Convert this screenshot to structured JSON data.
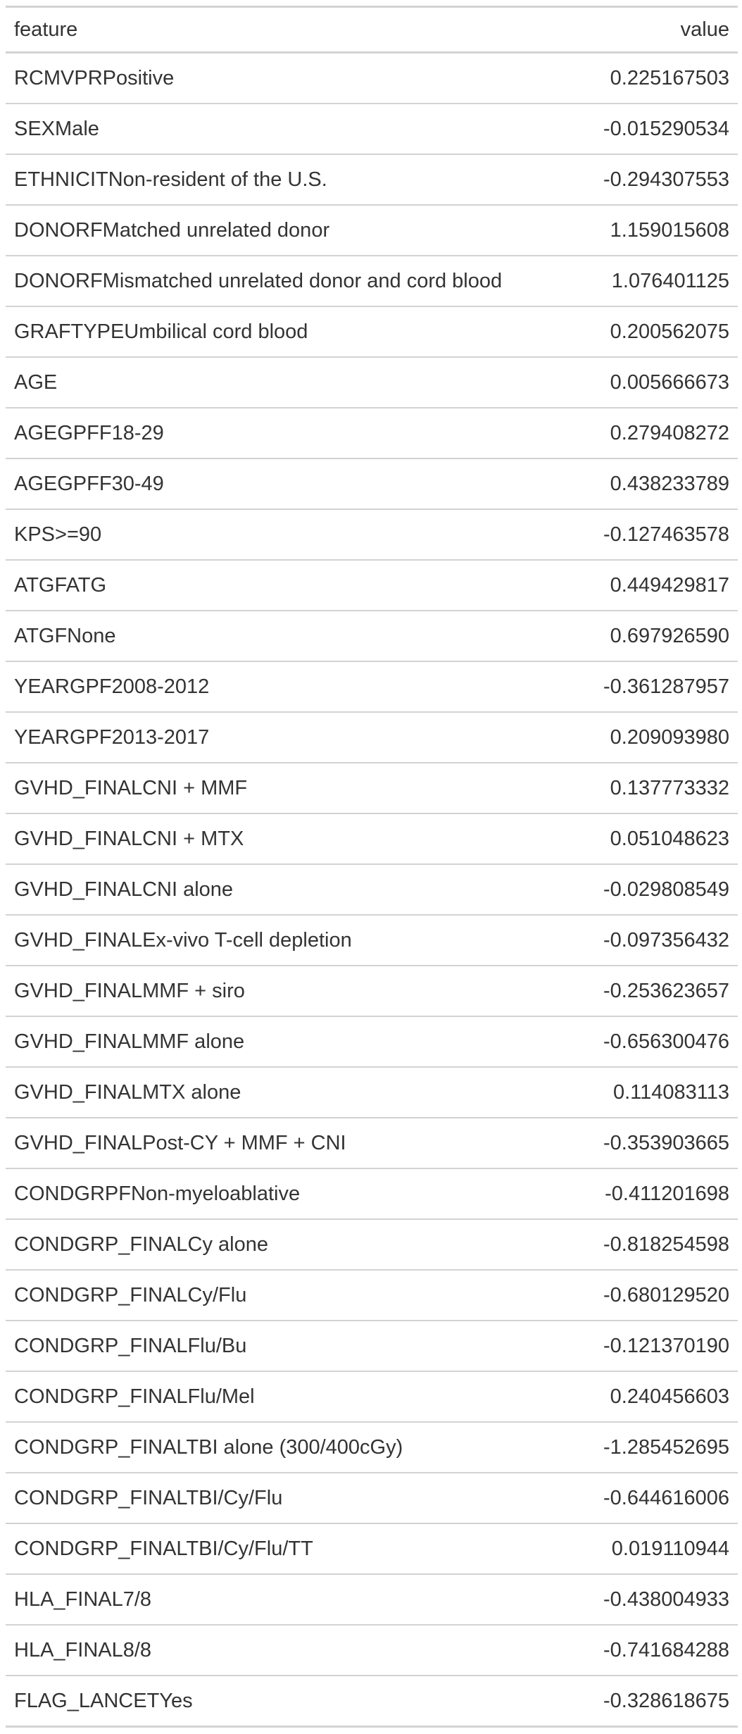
{
  "table": {
    "columns": [
      "feature",
      "value"
    ],
    "rows": [
      [
        "RCMVPRPositive",
        "0.225167503"
      ],
      [
        "SEXMale",
        "-0.015290534"
      ],
      [
        "ETHNICITNon-resident of the U.S.",
        "-0.294307553"
      ],
      [
        "DONORFMatched unrelated donor",
        "1.159015608"
      ],
      [
        "DONORFMismatched unrelated donor and cord blood",
        "1.076401125"
      ],
      [
        "GRAFTYPEUmbilical cord blood",
        "0.200562075"
      ],
      [
        "AGE",
        "0.005666673"
      ],
      [
        "AGEGPFF18-29",
        "0.279408272"
      ],
      [
        "AGEGPFF30-49",
        "0.438233789"
      ],
      [
        "KPS>=90",
        "-0.127463578"
      ],
      [
        "ATGFATG",
        "0.449429817"
      ],
      [
        "ATGFNone",
        "0.697926590"
      ],
      [
        "YEARGPF2008-2012",
        "-0.361287957"
      ],
      [
        "YEARGPF2013-2017",
        "0.209093980"
      ],
      [
        "GVHD_FINALCNI + MMF",
        "0.137773332"
      ],
      [
        "GVHD_FINALCNI + MTX",
        "0.051048623"
      ],
      [
        "GVHD_FINALCNI alone",
        "-0.029808549"
      ],
      [
        "GVHD_FINALEx-vivo T-cell depletion",
        "-0.097356432"
      ],
      [
        "GVHD_FINALMMF + siro",
        "-0.253623657"
      ],
      [
        "GVHD_FINALMMF alone",
        "-0.656300476"
      ],
      [
        "GVHD_FINALMTX alone",
        "0.114083113"
      ],
      [
        "GVHD_FINALPost-CY + MMF + CNI",
        "-0.353903665"
      ],
      [
        "CONDGRPFNon-myeloablative",
        "-0.411201698"
      ],
      [
        "CONDGRP_FINALCy alone",
        "-0.818254598"
      ],
      [
        "CONDGRP_FINALCy/Flu",
        "-0.680129520"
      ],
      [
        "CONDGRP_FINALFlu/Bu",
        "-0.121370190"
      ],
      [
        "CONDGRP_FINALFlu/Mel",
        "0.240456603"
      ],
      [
        "CONDGRP_FINALTBI alone (300/400cGy)",
        "-1.285452695"
      ],
      [
        "CONDGRP_FINALTBI/Cy/Flu",
        "-0.644616006"
      ],
      [
        "CONDGRP_FINALTBI/Cy/Flu/TT",
        "0.019110944"
      ],
      [
        "HLA_FINAL7/8",
        "-0.438004933"
      ],
      [
        "HLA_FINAL8/8",
        "-0.741684288"
      ],
      [
        "FLAG_LANCETYes",
        "-0.328618675"
      ]
    ]
  }
}
